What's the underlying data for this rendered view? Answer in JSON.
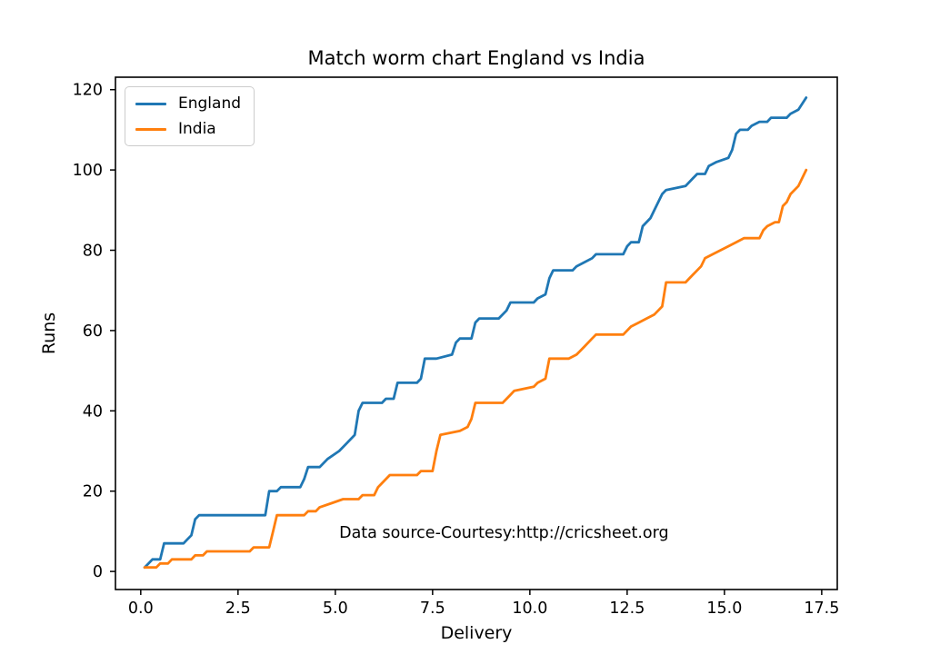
{
  "chart_data": {
    "type": "line",
    "title": "Match worm chart England vs India",
    "xlabel": "Delivery",
    "ylabel": "Runs",
    "xlim": [
      -0.65,
      17.9
    ],
    "ylim": [
      -4.5,
      123.1
    ],
    "grid": false,
    "xticks": [
      {
        "value": 0.0,
        "label": "0.0"
      },
      {
        "value": 2.5,
        "label": "2.5"
      },
      {
        "value": 5.0,
        "label": "5.0"
      },
      {
        "value": 7.5,
        "label": "7.5"
      },
      {
        "value": 10.0,
        "label": "10.0"
      },
      {
        "value": 12.5,
        "label": "12.5"
      },
      {
        "value": 15.0,
        "label": "15.0"
      },
      {
        "value": 17.5,
        "label": "17.5"
      }
    ],
    "yticks": [
      {
        "value": 0,
        "label": "0"
      },
      {
        "value": 20,
        "label": "20"
      },
      {
        "value": 40,
        "label": "40"
      },
      {
        "value": 60,
        "label": "60"
      },
      {
        "value": 80,
        "label": "80"
      },
      {
        "value": 100,
        "label": "100"
      },
      {
        "value": 120,
        "label": "120"
      }
    ],
    "legend": {
      "position": "upper left"
    },
    "annotation": {
      "text": "Data source-Courtesy:http://cricsheet.org",
      "x": 5.1,
      "y": 8.0
    },
    "series": [
      {
        "name": "England",
        "color": "#1f77b4",
        "final_score": 118,
        "final_delivery": 17.1,
        "points": [
          [
            0.1,
            1
          ],
          [
            0.2,
            2
          ],
          [
            0.3,
            3
          ],
          [
            0.5,
            3
          ],
          [
            0.6,
            7
          ],
          [
            1.1,
            7
          ],
          [
            1.2,
            8
          ],
          [
            1.3,
            9
          ],
          [
            1.4,
            13
          ],
          [
            1.5,
            14
          ],
          [
            3.2,
            14
          ],
          [
            3.3,
            20
          ],
          [
            3.5,
            20
          ],
          [
            3.6,
            21
          ],
          [
            4.1,
            21
          ],
          [
            4.2,
            23
          ],
          [
            4.3,
            26
          ],
          [
            4.6,
            26
          ],
          [
            4.8,
            28
          ],
          [
            5.1,
            30
          ],
          [
            5.3,
            32
          ],
          [
            5.5,
            34
          ],
          [
            5.6,
            40
          ],
          [
            5.7,
            42
          ],
          [
            6.2,
            42
          ],
          [
            6.3,
            43
          ],
          [
            6.5,
            43
          ],
          [
            6.6,
            47
          ],
          [
            7.1,
            47
          ],
          [
            7.2,
            48
          ],
          [
            7.3,
            53
          ],
          [
            7.6,
            53
          ],
          [
            8.0,
            54
          ],
          [
            8.1,
            57
          ],
          [
            8.2,
            58
          ],
          [
            8.5,
            58
          ],
          [
            8.6,
            62
          ],
          [
            8.7,
            63
          ],
          [
            9.2,
            63
          ],
          [
            9.4,
            65
          ],
          [
            9.5,
            67
          ],
          [
            10.1,
            67
          ],
          [
            10.2,
            68
          ],
          [
            10.4,
            69
          ],
          [
            10.5,
            73
          ],
          [
            10.6,
            75
          ],
          [
            11.1,
            75
          ],
          [
            11.2,
            76
          ],
          [
            11.4,
            77
          ],
          [
            11.6,
            78
          ],
          [
            11.7,
            79
          ],
          [
            12.4,
            79
          ],
          [
            12.5,
            81
          ],
          [
            12.6,
            82
          ],
          [
            12.8,
            82
          ],
          [
            12.9,
            86
          ],
          [
            13.1,
            88
          ],
          [
            13.2,
            90
          ],
          [
            13.4,
            94
          ],
          [
            13.5,
            95
          ],
          [
            14.0,
            96
          ],
          [
            14.2,
            98
          ],
          [
            14.3,
            99
          ],
          [
            14.5,
            99
          ],
          [
            14.6,
            101
          ],
          [
            14.8,
            102
          ],
          [
            15.1,
            103
          ],
          [
            15.2,
            105
          ],
          [
            15.3,
            109
          ],
          [
            15.4,
            110
          ],
          [
            15.6,
            110
          ],
          [
            15.7,
            111
          ],
          [
            15.9,
            112
          ],
          [
            16.1,
            112
          ],
          [
            16.2,
            113
          ],
          [
            16.6,
            113
          ],
          [
            16.7,
            114
          ],
          [
            16.9,
            115
          ],
          [
            17.1,
            118
          ]
        ]
      },
      {
        "name": "India",
        "color": "#ff7f0e",
        "final_score": 100,
        "final_delivery": 17.1,
        "points": [
          [
            0.1,
            1
          ],
          [
            0.4,
            1
          ],
          [
            0.5,
            2
          ],
          [
            0.7,
            2
          ],
          [
            0.8,
            3
          ],
          [
            1.3,
            3
          ],
          [
            1.4,
            4
          ],
          [
            1.6,
            4
          ],
          [
            1.7,
            5
          ],
          [
            2.8,
            5
          ],
          [
            2.9,
            6
          ],
          [
            3.3,
            6
          ],
          [
            3.4,
            10
          ],
          [
            3.5,
            14
          ],
          [
            4.2,
            14
          ],
          [
            4.3,
            15
          ],
          [
            4.5,
            15
          ],
          [
            4.6,
            16
          ],
          [
            4.9,
            17
          ],
          [
            5.2,
            18
          ],
          [
            5.6,
            18
          ],
          [
            5.7,
            19
          ],
          [
            6.0,
            19
          ],
          [
            6.1,
            21
          ],
          [
            6.2,
            22
          ],
          [
            6.4,
            24
          ],
          [
            7.1,
            24
          ],
          [
            7.2,
            25
          ],
          [
            7.5,
            25
          ],
          [
            7.6,
            30
          ],
          [
            7.7,
            34
          ],
          [
            8.2,
            35
          ],
          [
            8.4,
            36
          ],
          [
            8.5,
            38
          ],
          [
            8.6,
            42
          ],
          [
            9.3,
            42
          ],
          [
            9.5,
            44
          ],
          [
            9.6,
            45
          ],
          [
            10.1,
            46
          ],
          [
            10.2,
            47
          ],
          [
            10.4,
            48
          ],
          [
            10.5,
            53
          ],
          [
            11.0,
            53
          ],
          [
            11.2,
            54
          ],
          [
            11.4,
            56
          ],
          [
            11.6,
            58
          ],
          [
            11.7,
            59
          ],
          [
            12.4,
            59
          ],
          [
            12.6,
            61
          ],
          [
            12.8,
            62
          ],
          [
            13.0,
            63
          ],
          [
            13.2,
            64
          ],
          [
            13.3,
            65
          ],
          [
            13.4,
            66
          ],
          [
            13.5,
            72
          ],
          [
            14.0,
            72
          ],
          [
            14.2,
            74
          ],
          [
            14.4,
            76
          ],
          [
            14.5,
            78
          ],
          [
            14.7,
            79
          ],
          [
            14.9,
            80
          ],
          [
            15.1,
            81
          ],
          [
            15.3,
            82
          ],
          [
            15.5,
            83
          ],
          [
            15.9,
            83
          ],
          [
            16.0,
            85
          ],
          [
            16.1,
            86
          ],
          [
            16.3,
            87
          ],
          [
            16.4,
            87
          ],
          [
            16.5,
            91
          ],
          [
            16.6,
            92
          ],
          [
            16.7,
            94
          ],
          [
            16.9,
            96
          ],
          [
            17.1,
            100
          ]
        ]
      }
    ]
  }
}
